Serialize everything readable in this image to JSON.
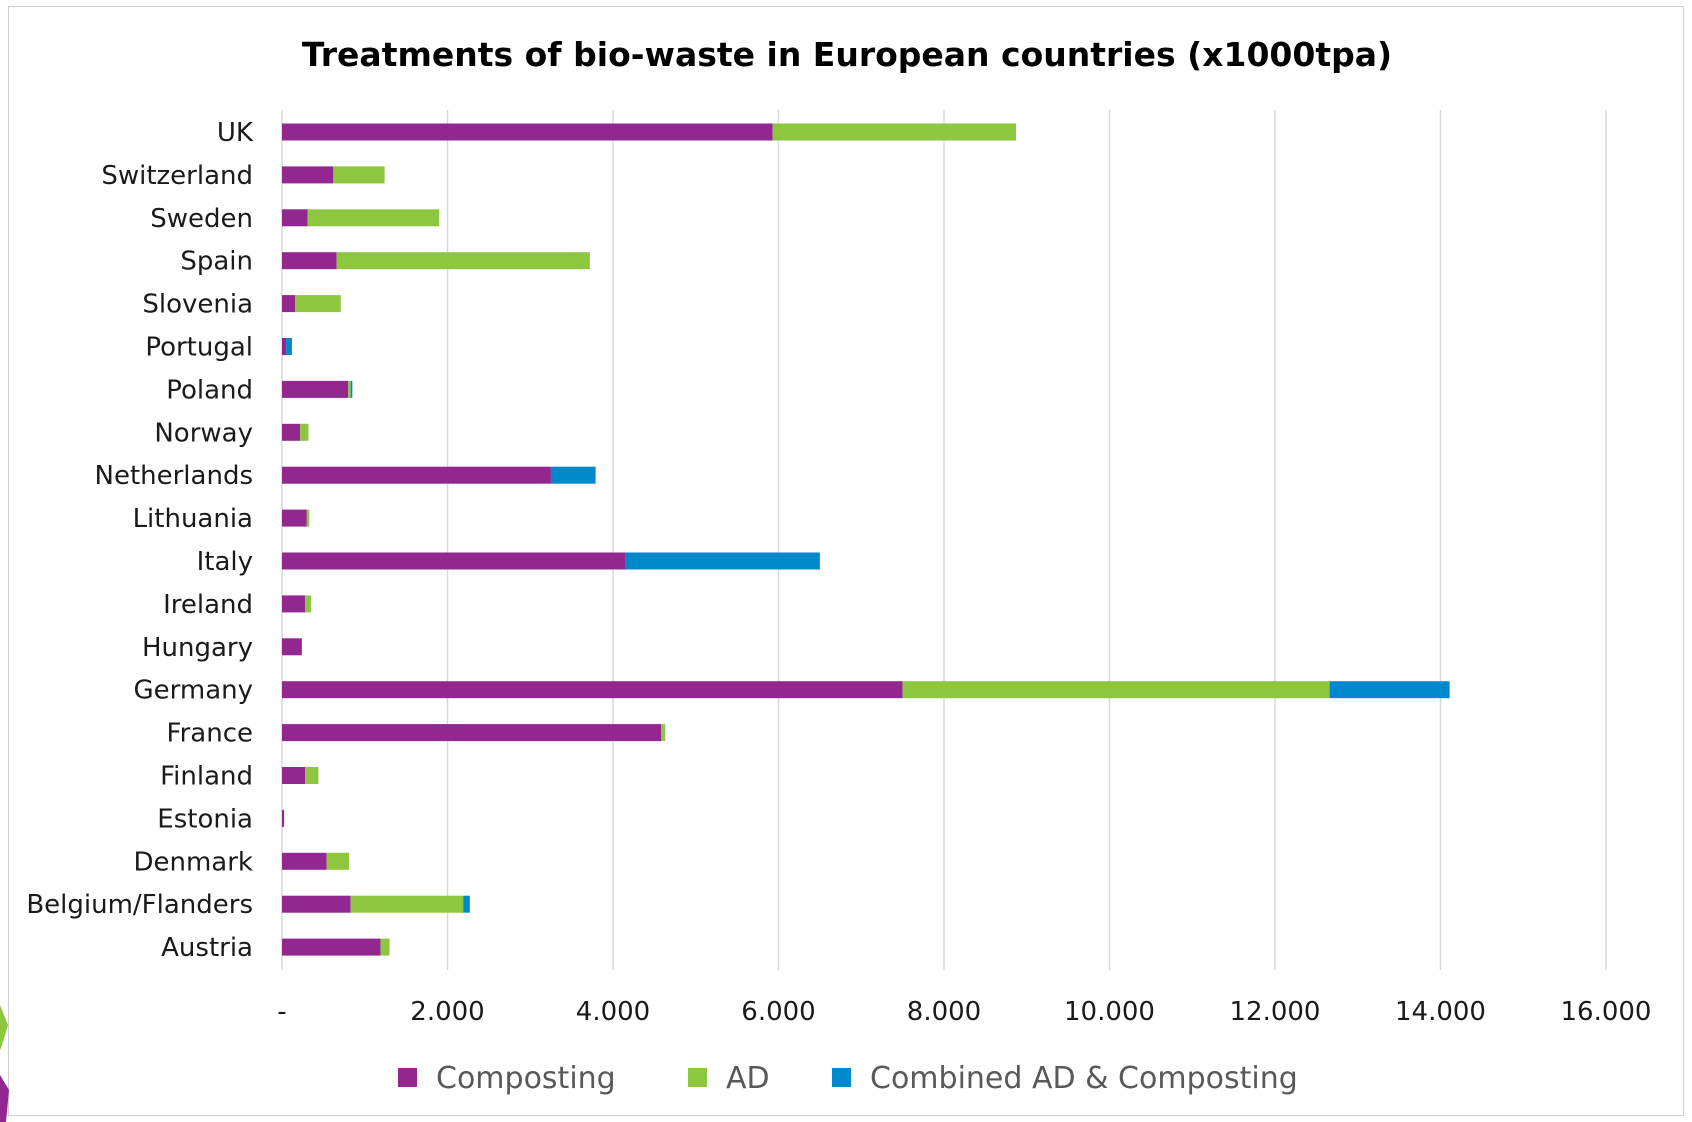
{
  "chart_data": {
    "type": "bar",
    "orientation": "horizontal",
    "stacked": true,
    "title": "Treatments of bio-waste in European countries (x1000tpa)",
    "categories": [
      "UK",
      "Switzerland",
      "Sweden",
      "Spain",
      "Slovenia",
      "Portugal",
      "Poland",
      "Norway",
      "Netherlands",
      "Lithuania",
      "Italy",
      "Ireland",
      "Hungary",
      "Germany",
      "France",
      "Finland",
      "Estonia",
      "Denmark",
      "Belgium/Flanders",
      "Austria"
    ],
    "series": [
      {
        "name": "Composting",
        "color": "#92278f",
        "values": [
          5930,
          620,
          310,
          660,
          160,
          50,
          800,
          220,
          3250,
          300,
          4150,
          280,
          240,
          7500,
          4580,
          280,
          25,
          540,
          830,
          1190
        ]
      },
      {
        "name": "AD",
        "color": "#8dc63f",
        "values": [
          2940,
          620,
          1590,
          3060,
          550,
          0,
          30,
          100,
          0,
          30,
          0,
          70,
          0,
          5160,
          50,
          160,
          0,
          270,
          1360,
          110
        ]
      },
      {
        "name": "Combined AD & Composting",
        "color": "#0088cc",
        "values": [
          0,
          0,
          0,
          0,
          0,
          70,
          20,
          0,
          540,
          0,
          2350,
          0,
          0,
          1450,
          0,
          0,
          0,
          0,
          80,
          0
        ]
      }
    ],
    "xlim": [
      0,
      16000
    ],
    "xticks": [
      0,
      2000,
      4000,
      6000,
      8000,
      10000,
      12000,
      14000,
      16000
    ],
    "xtick_labels": [
      "-",
      "2.000",
      "4.000",
      "6.000",
      "8.000",
      "10.000",
      "12.000",
      "14.000",
      "16.000"
    ],
    "grid": "vertical",
    "legend": "bottom"
  }
}
